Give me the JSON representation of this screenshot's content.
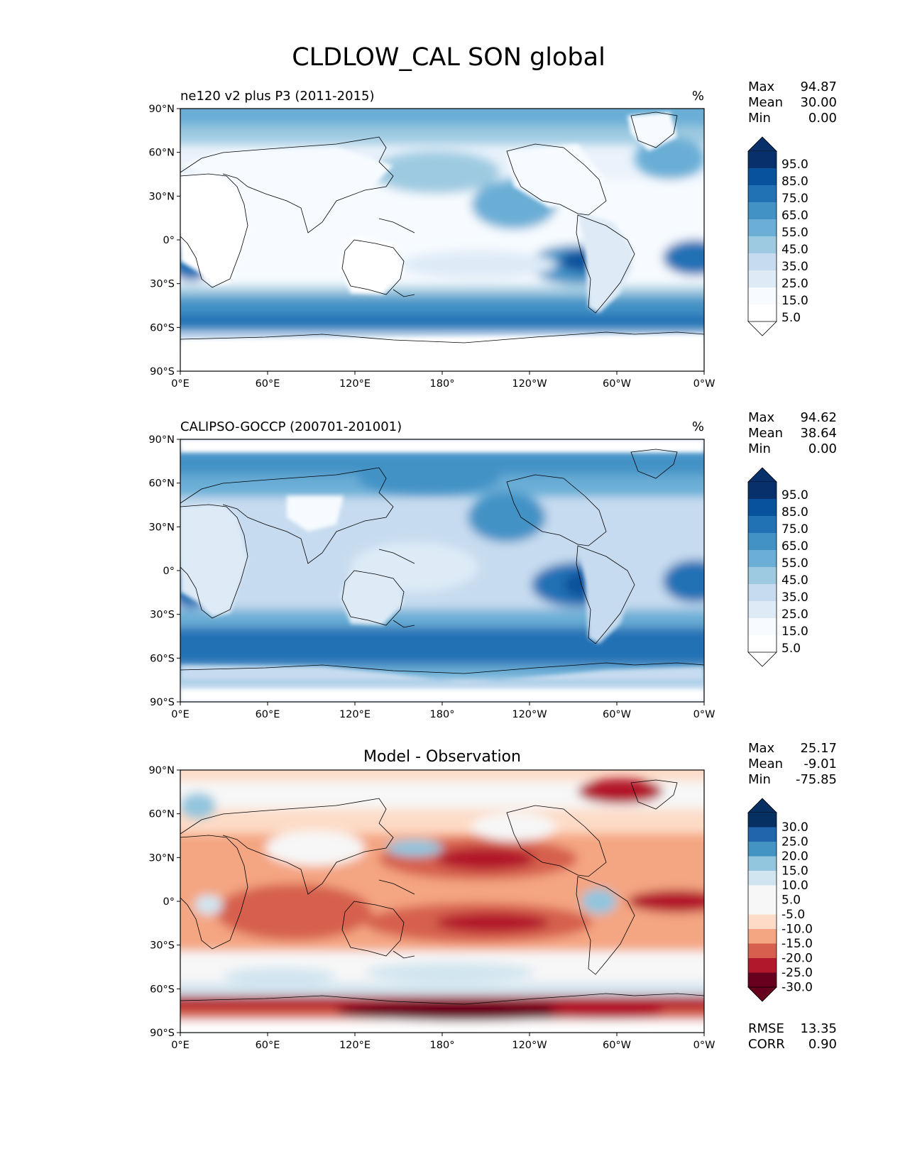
{
  "title": "CLDLOW_CAL SON global",
  "lon_ticks": [
    "0°E",
    "60°E",
    "120°E",
    "180°",
    "120°W",
    "60°W",
    "0°W"
  ],
  "lat_ticks": [
    "90°N",
    "60°N",
    "30°N",
    "0°",
    "30°S",
    "60°S",
    "90°S"
  ],
  "colors": {
    "blues": [
      "#ffffff",
      "#f7fbff",
      "#deebf7",
      "#c6dbef",
      "#9ecae1",
      "#6baed6",
      "#4292c6",
      "#2171b5",
      "#08519c",
      "#08306b"
    ],
    "diverging": [
      "#67001f",
      "#b2182b",
      "#d6604d",
      "#f4a582",
      "#fddbc7",
      "#f7f7f7",
      "#d1e5f0",
      "#92c5de",
      "#4393c3",
      "#2166ac",
      "#053061"
    ],
    "coast": "#000000"
  },
  "panels": [
    {
      "id": "model",
      "left_title": "ne120 v2 plus P3 (2011-2015)",
      "center_title": "",
      "units": "%",
      "stats": [
        {
          "label": "Max",
          "value": "94.87"
        },
        {
          "label": "Mean",
          "value": "30.00"
        },
        {
          "label": "Min",
          "value": "0.00"
        }
      ],
      "colorbar_labels": [
        "95.0",
        "85.0",
        "75.0",
        "65.0",
        "55.0",
        "45.0",
        "35.0",
        "25.0",
        "15.0",
        "5.0"
      ],
      "footer_stats": []
    },
    {
      "id": "observation",
      "left_title": "CALIPSO-GOCCP (200701-201001)",
      "center_title": "",
      "units": "%",
      "stats": [
        {
          "label": "Max",
          "value": "94.62"
        },
        {
          "label": "Mean",
          "value": "38.64"
        },
        {
          "label": "Min",
          "value": "0.00"
        }
      ],
      "colorbar_labels": [
        "95.0",
        "85.0",
        "75.0",
        "65.0",
        "55.0",
        "45.0",
        "35.0",
        "25.0",
        "15.0",
        "5.0"
      ],
      "footer_stats": []
    },
    {
      "id": "difference",
      "left_title": "",
      "center_title": "Model - Observation",
      "units": "",
      "stats": [
        {
          "label": "Max",
          "value": "25.17"
        },
        {
          "label": "Mean",
          "value": "-9.01"
        },
        {
          "label": "Min",
          "value": "-75.85"
        }
      ],
      "colorbar_labels": [
        "30.0",
        "25.0",
        "20.0",
        "15.0",
        "10.0",
        "5.0",
        "-5.0",
        "-10.0",
        "-15.0",
        "-20.0",
        "-25.0",
        "-30.0"
      ],
      "footer_stats": [
        {
          "label": "RMSE",
          "value": "13.35"
        },
        {
          "label": "CORR",
          "value": "0.90"
        }
      ]
    }
  ]
}
